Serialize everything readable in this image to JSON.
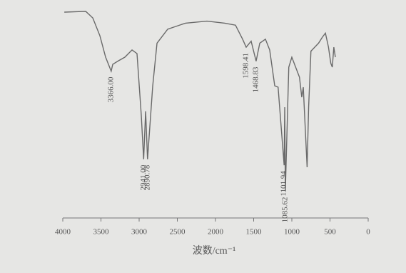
{
  "chart_data": {
    "type": "line",
    "x_label": "波数/cm⁻¹",
    "xlim": [
      4000,
      0
    ],
    "xticks": [
      4000,
      3500,
      3000,
      2500,
      2000,
      1500,
      1000,
      500,
      0
    ],
    "ylim": [
      0,
      100
    ],
    "series": [
      {
        "color": "#6a6a6a",
        "x": [
          3980,
          3700,
          3607,
          3514,
          3439,
          3366,
          3346,
          3280,
          3187,
          3093,
          3028,
          2972,
          2941,
          2915,
          2890,
          2822,
          2766,
          2626,
          2393,
          2112,
          1879,
          1738,
          1645,
          1598,
          1533,
          1468,
          1420,
          1346,
          1290,
          1224,
          1180,
          1101,
          1093,
          1085,
          1040,
          1000,
          950,
          900,
          870,
          850,
          800,
          780,
          750,
          700,
          650,
          600,
          560,
          520,
          490,
          470,
          450,
          430
        ],
        "values": [
          97.5,
          97.9,
          94.6,
          85.7,
          75,
          68,
          71.4,
          73,
          75,
          78.6,
          76.8,
          46,
          24,
          48,
          24,
          60.7,
          82,
          89,
          92,
          93,
          92,
          91,
          84,
          80,
          83,
          73,
          82,
          84,
          78.6,
          60.7,
          60,
          21,
          50,
          8,
          70,
          75,
          70,
          65,
          55,
          60,
          20,
          50,
          78,
          80,
          82,
          85,
          87,
          80,
          72,
          70,
          80,
          75
        ]
      }
    ],
    "annotations": [
      {
        "text": "3366.00",
        "x": 3366
      },
      {
        "text": "2941.00",
        "x": 2941
      },
      {
        "text": "2890.78",
        "x": 2890
      },
      {
        "text": "1598.41",
        "x": 1598
      },
      {
        "text": "1468.83",
        "x": 1468
      },
      {
        "text": "1101.94",
        "x": 1101
      },
      {
        "text": "1085.62",
        "x": 1085
      }
    ]
  }
}
